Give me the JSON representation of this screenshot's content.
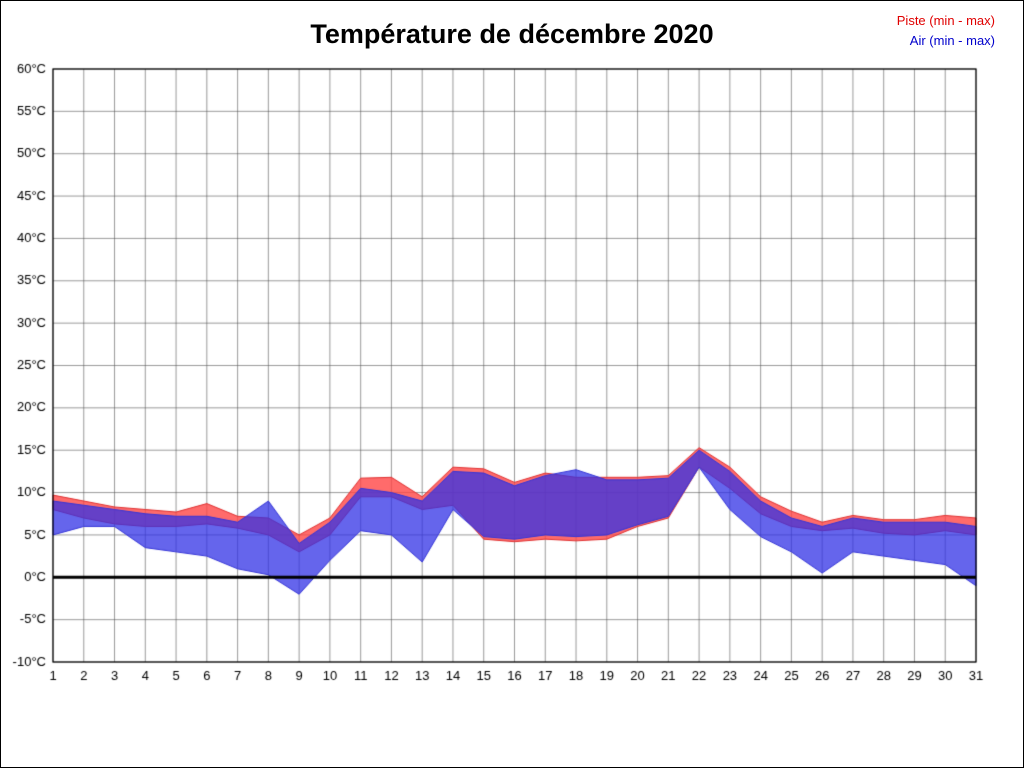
{
  "title": "Température de décembre 2020",
  "legend": {
    "piste_label": "Piste (min - max)",
    "air_label": "Air (min - max)"
  },
  "colors": {
    "piste_line": "#e03030",
    "piste_fill": "rgba(255,70,70,0.80)",
    "air_line": "#3535d8",
    "air_fill": "rgba(50,50,230,0.75)",
    "grid": "#555555",
    "axis": "#000000",
    "zero_line": "#000000"
  },
  "chart_data": {
    "type": "area",
    "title": "Température de décembre 2020",
    "xlabel": "",
    "ylabel": "",
    "x": [
      1,
      2,
      3,
      4,
      5,
      6,
      7,
      8,
      9,
      10,
      11,
      12,
      13,
      14,
      15,
      16,
      17,
      18,
      19,
      20,
      21,
      22,
      23,
      24,
      25,
      26,
      27,
      28,
      29,
      30,
      31
    ],
    "x_tick_labels": [
      "1",
      "2",
      "3",
      "4",
      "5",
      "6",
      "7",
      "8",
      "9",
      "10",
      "11",
      "12",
      "13",
      "14",
      "15",
      "16",
      "17",
      "18",
      "19",
      "20",
      "21",
      "22",
      "23",
      "24",
      "25",
      "26",
      "27",
      "28",
      "29",
      "30",
      "31"
    ],
    "ylim": [
      -10,
      60
    ],
    "y_tick_values": [
      60,
      55,
      50,
      45,
      40,
      35,
      30,
      25,
      20,
      15,
      10,
      5,
      0,
      -5,
      -10
    ],
    "y_tick_labels": [
      "60°C",
      "55°C",
      "50°C",
      "45°C",
      "40°C",
      "35°C",
      "30°C",
      "25°C",
      "20°C",
      "15°C",
      "10°C",
      "5°C",
      "0°C",
      "-5°C",
      "-10°C"
    ],
    "grid": true,
    "legend_position": "top-right",
    "series": [
      {
        "name": "Piste (min - max)",
        "color_key": "piste",
        "min": [
          8,
          7,
          6.3,
          6,
          6,
          6.3,
          5.8,
          5,
          3,
          5,
          9.5,
          9.5,
          8,
          8.5,
          4.5,
          4.2,
          4.5,
          4.3,
          4.5,
          6,
          7,
          13,
          10.5,
          7.5,
          6,
          5.5,
          5.8,
          5.2,
          5,
          5.5,
          5
        ],
        "max": [
          9.7,
          9,
          8.3,
          8,
          7.7,
          8.7,
          7.2,
          7,
          5,
          7,
          11.7,
          11.8,
          9.5,
          13,
          12.8,
          11.2,
          12.3,
          11.8,
          11.8,
          11.8,
          12,
          15.3,
          13,
          9.5,
          7.8,
          6.5,
          7.3,
          6.8,
          6.8,
          7.3,
          7
        ]
      },
      {
        "name": "Air (min - max)",
        "color_key": "air",
        "min": [
          5,
          6,
          6,
          3.5,
          3,
          2.5,
          1,
          0.3,
          -2,
          2,
          5.5,
          5,
          1.8,
          8,
          4.8,
          4.5,
          5,
          4.8,
          5,
          6.2,
          7.2,
          13,
          8,
          4.8,
          3,
          0.5,
          3,
          2.5,
          2,
          1.5,
          -1
        ],
        "max": [
          9,
          8.5,
          8,
          7.5,
          7.2,
          7.2,
          6.5,
          9,
          4,
          6.5,
          10.5,
          10,
          9,
          12.5,
          12.3,
          10.8,
          12,
          12.7,
          11.5,
          11.5,
          11.7,
          15,
          12.5,
          9,
          7,
          6,
          7,
          6.5,
          6.5,
          6.5,
          6
        ]
      }
    ],
    "zero_line_value": 0
  }
}
